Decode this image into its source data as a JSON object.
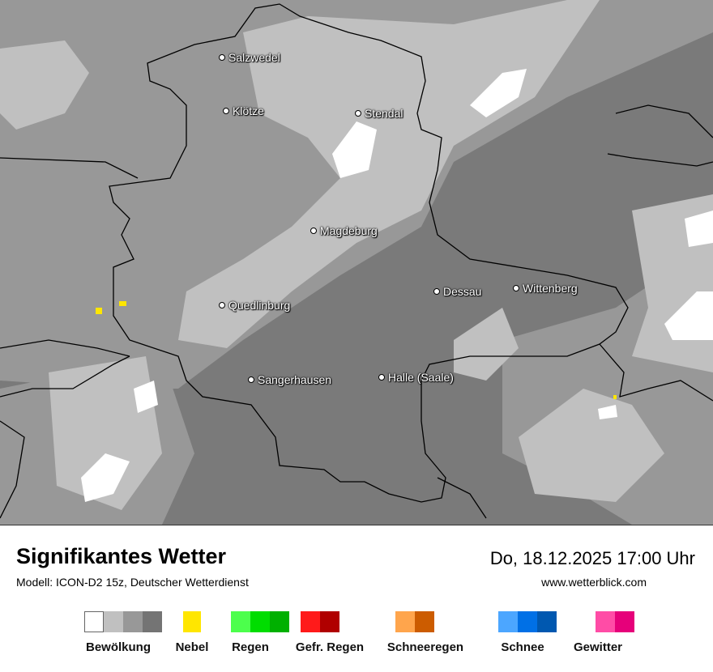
{
  "map": {
    "cities": [
      {
        "name": "Salzwedel"
      },
      {
        "name": "Klötze"
      },
      {
        "name": "Stendal"
      },
      {
        "name": "Magdeburg"
      },
      {
        "name": "Dessau"
      },
      {
        "name": "Wittenberg"
      },
      {
        "name": "Quedlinburg"
      },
      {
        "name": "Sangerhausen"
      },
      {
        "name": "Halle (Saale)"
      }
    ]
  },
  "header": {
    "title": "Signifikantes Wetter",
    "model": "Modell: ICON-D2 15z, Deutscher Wetterdienst",
    "datetime": "Do, 18.12.2025 17:00 Uhr",
    "website": "www.wetterblick.com"
  },
  "legend": [
    {
      "label": "Bewölkung",
      "colors": [
        "#ffffff",
        "#c0c0c0",
        "#989898",
        "#747474"
      ]
    },
    {
      "label": "Nebel",
      "colors": [
        "#ffe600"
      ]
    },
    {
      "label": "Regen",
      "colors": [
        "#4cff4c",
        "#00dd00",
        "#00b000"
      ]
    },
    {
      "label": "Gefr. Regen",
      "colors": [
        "#ff1a1a",
        "#b00000"
      ]
    },
    {
      "label": "Schneeregen",
      "colors": [
        "#ffa54c",
        "#cc5c00"
      ]
    },
    {
      "label": "Schnee",
      "colors": [
        "#4ca6ff",
        "#0070e6",
        "#0058b0"
      ]
    },
    {
      "label": "Gewitter",
      "colors": [
        "#ff4ca6",
        "#e6007a"
      ]
    }
  ]
}
